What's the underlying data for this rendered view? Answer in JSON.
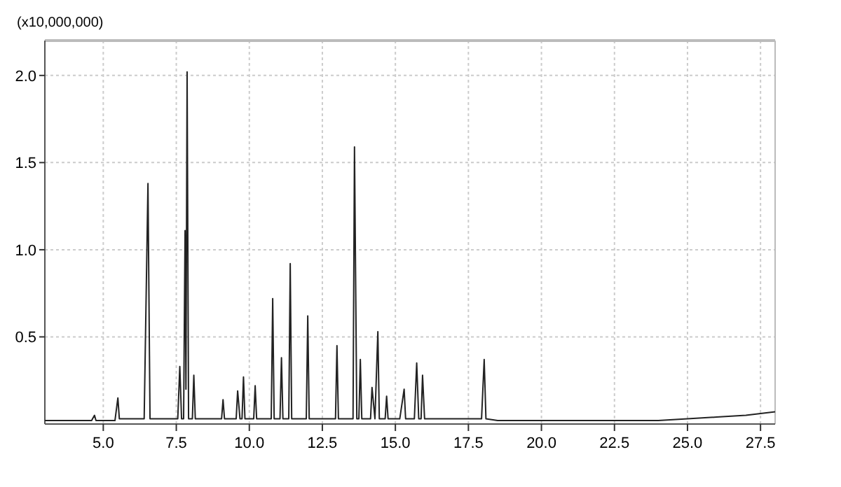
{
  "chart_data": {
    "type": "line",
    "ylabel": "(x10,000,000)",
    "x": [
      3.0,
      4.6,
      4.7,
      4.75,
      5.4,
      5.5,
      5.55,
      6.4,
      6.53,
      6.6,
      7.55,
      7.62,
      7.68,
      7.75,
      7.8,
      7.83,
      7.87,
      7.92,
      8.05,
      8.1,
      8.15,
      9.05,
      9.1,
      9.15,
      9.55,
      9.6,
      9.68,
      9.75,
      9.8,
      9.85,
      10.15,
      10.2,
      10.25,
      10.75,
      10.8,
      10.85,
      11.05,
      11.1,
      11.15,
      11.35,
      11.4,
      11.45,
      11.95,
      12.0,
      12.05,
      12.95,
      13.0,
      13.05,
      13.55,
      13.6,
      13.68,
      13.75,
      13.8,
      13.85,
      14.15,
      14.2,
      14.3,
      14.4,
      14.45,
      14.65,
      14.7,
      14.75,
      15.15,
      15.3,
      15.35,
      15.65,
      15.73,
      15.8,
      15.88,
      15.93,
      16.0,
      17.95,
      18.04,
      18.1,
      18.5,
      22.0,
      24.0,
      25.0,
      26.0,
      27.0,
      27.5,
      28.0
    ],
    "series": [
      {
        "color": "#222222",
        "values": [
          0.02,
          0.02,
          0.05,
          0.02,
          0.02,
          0.15,
          0.03,
          0.03,
          1.38,
          0.03,
          0.03,
          0.33,
          0.03,
          0.03,
          1.11,
          0.2,
          2.02,
          0.03,
          0.03,
          0.28,
          0.03,
          0.03,
          0.14,
          0.03,
          0.03,
          0.19,
          0.03,
          0.03,
          0.27,
          0.03,
          0.03,
          0.22,
          0.03,
          0.03,
          0.72,
          0.03,
          0.03,
          0.38,
          0.03,
          0.03,
          0.92,
          0.03,
          0.03,
          0.62,
          0.03,
          0.03,
          0.45,
          0.03,
          0.03,
          1.59,
          0.03,
          0.03,
          0.37,
          0.03,
          0.03,
          0.21,
          0.03,
          0.53,
          0.03,
          0.03,
          0.16,
          0.03,
          0.03,
          0.2,
          0.03,
          0.03,
          0.35,
          0.03,
          0.03,
          0.28,
          0.03,
          0.03,
          0.37,
          0.03,
          0.02,
          0.02,
          0.02,
          0.03,
          0.04,
          0.05,
          0.06,
          0.07
        ]
      }
    ],
    "xlim": [
      3.0,
      28.0
    ],
    "ylim": [
      0,
      2.2
    ],
    "xticks": [
      {
        "value": 5,
        "label": "5.0"
      },
      7.5,
      {
        "value": 10,
        "label": "10.0"
      },
      12.5,
      {
        "value": 15,
        "label": "15.0"
      },
      17.5,
      {
        "value": 20,
        "label": "20.0"
      },
      22.5,
      {
        "value": 25,
        "label": "25.0"
      },
      27.5
    ],
    "yticks": [
      0.5,
      {
        "value": 1,
        "label": "1.0"
      },
      1.5,
      {
        "value": 2,
        "label": "2.0"
      }
    ],
    "grid": true
  }
}
